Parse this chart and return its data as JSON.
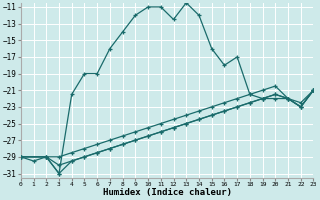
{
  "bg_color": "#ceeaea",
  "grid_color": "#ffffff",
  "line_color": "#1a6b6b",
  "xlabel": "Humidex (Indice chaleur)",
  "xlim": [
    0,
    23
  ],
  "ylim": [
    -31.5,
    -10.5
  ],
  "xticks": [
    0,
    1,
    2,
    3,
    4,
    5,
    6,
    7,
    8,
    9,
    10,
    11,
    12,
    13,
    14,
    15,
    16,
    17,
    18,
    19,
    20,
    21,
    22,
    23
  ],
  "yticks": [
    -11,
    -13,
    -15,
    -17,
    -19,
    -21,
    -23,
    -25,
    -27,
    -29,
    -31
  ],
  "line1_x": [
    0,
    1,
    2,
    3,
    4,
    5,
    6,
    7,
    8,
    9,
    10,
    11,
    12,
    13,
    14,
    15,
    16,
    17,
    18,
    19,
    20,
    21,
    22,
    23
  ],
  "line1_y": [
    -29,
    -29.5,
    -29,
    -31,
    -21.5,
    -19,
    -19,
    -16,
    -14,
    -12,
    -11,
    -11,
    -12.5,
    -10.5,
    -12,
    -16,
    -18,
    -17,
    -21.5,
    -22,
    -22,
    -22,
    -23,
    -21
  ],
  "line2_x": [
    0,
    2,
    3,
    4,
    5,
    6,
    7,
    8,
    9,
    10,
    11,
    12,
    13,
    14,
    15,
    16,
    17,
    18,
    19,
    20,
    21,
    22,
    23
  ],
  "line2_y": [
    -29,
    -29,
    -29,
    -28.5,
    -28,
    -27.5,
    -27,
    -26.5,
    -26,
    -25.5,
    -25,
    -24.5,
    -24,
    -23.5,
    -23,
    -22.5,
    -22,
    -21.5,
    -21,
    -20.5,
    -22,
    -22.5,
    -21
  ],
  "line3_x": [
    0,
    2,
    3,
    4,
    5,
    6,
    7,
    8,
    9,
    10,
    11,
    12,
    13,
    14,
    15,
    16,
    17,
    18,
    19,
    20,
    21,
    22,
    23
  ],
  "line3_y": [
    -29,
    -29,
    -30,
    -29.5,
    -29,
    -28.5,
    -28,
    -27.5,
    -27,
    -26.5,
    -26,
    -25.5,
    -25,
    -24.5,
    -24,
    -23.5,
    -23,
    -22.5,
    -22,
    -21.5,
    -22,
    -23,
    -21
  ],
  "line4_x": [
    0,
    2,
    3,
    4,
    5,
    6,
    7,
    8,
    9,
    10,
    11,
    12,
    13,
    14,
    15,
    16,
    17,
    18,
    19,
    20,
    21,
    22,
    23
  ],
  "line4_y": [
    -29,
    -29,
    -31,
    -29.5,
    -29,
    -28.5,
    -28,
    -27.5,
    -27,
    -26.5,
    -26,
    -25.5,
    -25,
    -24.5,
    -24,
    -23.5,
    -23,
    -22.5,
    -22,
    -21.5,
    -22,
    -23,
    -21
  ]
}
